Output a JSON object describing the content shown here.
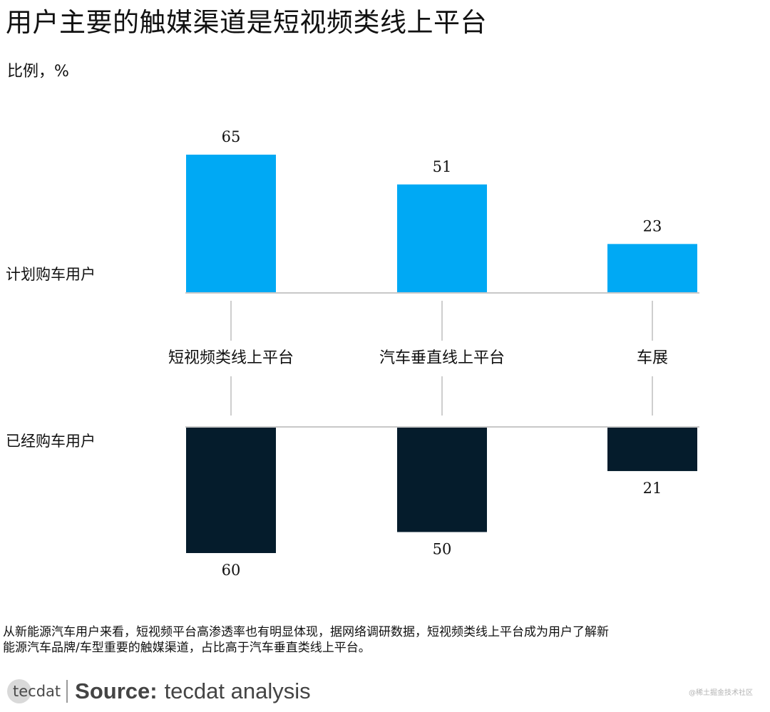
{
  "page": {
    "title": "用户主要的触媒渠道是短视频类线上平台",
    "subtitle": "比例，%"
  },
  "chart_data": {
    "type": "bar",
    "categories": [
      "短视频类线上平台",
      "汽车垂直线上平台",
      "车展"
    ],
    "series": [
      {
        "name": "计划购车用户",
        "values": [
          65,
          51,
          23
        ],
        "color": "#00a9f4",
        "direction": "up"
      },
      {
        "name": "已经购车用户",
        "values": [
          60,
          50,
          21
        ],
        "color": "#051c2c",
        "direction": "down"
      }
    ],
    "ylim": [
      0,
      65
    ],
    "grid": false,
    "legend": "none"
  },
  "note": {
    "line1": "从新能源汽车用户来看，短视频平台高渗透率也有明显体现，据网络调研数据，短视频类线上平台成为用户了解新",
    "line2": "能源汽车品牌/车型重要的触媒渠道，占比高于汽车垂直类线上平台。"
  },
  "source": {
    "logo_text": "tecdat",
    "label": "Source:",
    "value": "tecdat analysis"
  },
  "watermark": "@稀土掘金技术社区"
}
